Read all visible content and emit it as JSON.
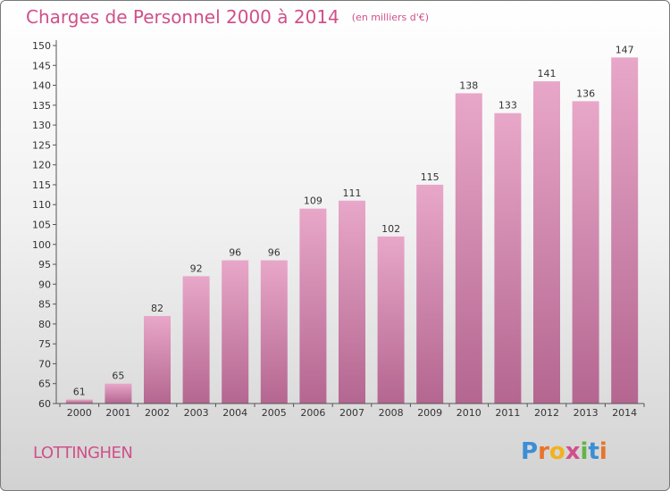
{
  "title": "Charges de Personnel 2000 à 2014",
  "subtitle": "(en milliers d'€)",
  "commune": "LOTTINGHEN",
  "logo": {
    "letters": [
      "P",
      "r",
      "o",
      "x",
      "i",
      "t",
      "i"
    ],
    "colors": [
      "#3a8fd6",
      "#e8742a",
      "#f2b21b",
      "#d0508a",
      "#64b347",
      "#3a8fd6",
      "#e8742a"
    ]
  },
  "colors": {
    "bar_top": "#e8a7c8",
    "bar_bottom": "#b46690",
    "accent": "#d0508a"
  },
  "chart_data": {
    "type": "bar",
    "title": "Charges de Personnel 2000 à 2014",
    "subtitle": "(en milliers d'€)",
    "categories": [
      "2000",
      "2001",
      "2002",
      "2003",
      "2004",
      "2005",
      "2006",
      "2007",
      "2008",
      "2009",
      "2010",
      "2011",
      "2012",
      "2013",
      "2014"
    ],
    "values": [
      61,
      65,
      82,
      92,
      96,
      96,
      109,
      111,
      102,
      115,
      138,
      133,
      141,
      136,
      147
    ],
    "ylim": [
      60,
      150
    ],
    "yticks": [
      60,
      65,
      70,
      75,
      80,
      85,
      90,
      95,
      100,
      105,
      110,
      115,
      120,
      125,
      130,
      135,
      140,
      145,
      150
    ],
    "grid": false,
    "legend": "none"
  }
}
